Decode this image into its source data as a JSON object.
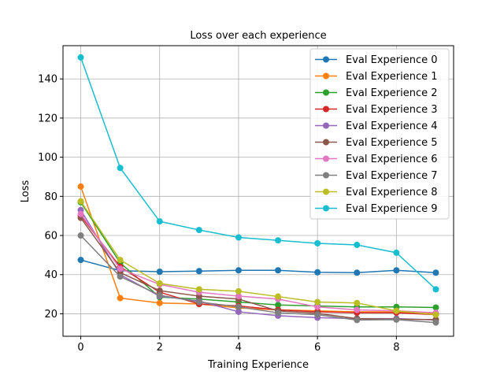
{
  "chart_data": {
    "type": "line",
    "title": "Loss over each experience",
    "xlabel": "Training Experience",
    "ylabel": "Loss",
    "xlim": [
      -0.45,
      9.45
    ],
    "ylim": [
      8.5,
      157
    ],
    "xticks": [
      0,
      2,
      4,
      6,
      8
    ],
    "yticks": [
      20,
      40,
      60,
      80,
      100,
      120,
      140
    ],
    "grid": true,
    "legend_position": "top-right",
    "x": [
      0,
      1,
      2,
      3,
      4,
      5,
      6,
      7,
      8,
      9
    ],
    "series": [
      {
        "name": "Eval Experience 0",
        "color": "#1f77b4",
        "values": [
          47.5,
          42,
          41.5,
          41.8,
          42.2,
          42.2,
          41.2,
          41.0,
          42.2,
          41.0
        ]
      },
      {
        "name": "Eval Experience 1",
        "color": "#ff7f0e",
        "values": [
          85,
          28,
          25.5,
          25.0,
          23.0,
          22.0,
          21.5,
          21.0,
          21.0,
          20.0
        ]
      },
      {
        "name": "Eval Experience 2",
        "color": "#2ca02c",
        "values": [
          77,
          46,
          28.5,
          27.5,
          26.0,
          24.5,
          24.0,
          23.5,
          23.5,
          23.2
        ]
      },
      {
        "name": "Eval Experience 3",
        "color": "#d62728",
        "values": [
          70,
          44,
          31,
          25,
          24,
          22,
          21,
          20.5,
          20.5,
          19.5
        ]
      },
      {
        "name": "Eval Experience 4",
        "color": "#9467bd",
        "values": [
          73,
          40,
          29,
          26.5,
          21,
          19,
          18,
          17.5,
          17.5,
          16.8
        ]
      },
      {
        "name": "Eval Experience 5",
        "color": "#8c564b",
        "values": [
          69,
          41,
          31.8,
          29,
          27.5,
          21.5,
          20.2,
          17.5,
          17.2,
          17.0
        ]
      },
      {
        "name": "Eval Experience 6",
        "color": "#e377c2",
        "values": [
          71,
          43,
          35,
          31,
          29,
          27.5,
          23.5,
          22,
          21.5,
          20.5
        ]
      },
      {
        "name": "Eval Experience 7",
        "color": "#7f7f7f",
        "values": [
          60,
          39,
          29.5,
          26,
          23.5,
          20.5,
          19.5,
          16.8,
          17.0,
          15.5
        ]
      },
      {
        "name": "Eval Experience 8",
        "color": "#bcbd22",
        "values": [
          77.5,
          47.5,
          35.5,
          32.5,
          31.5,
          28.8,
          26.0,
          25.5,
          21.5,
          19.5
        ]
      },
      {
        "name": "Eval Experience 9",
        "color": "#17becf",
        "values": [
          151,
          94.5,
          67.2,
          62.8,
          59.0,
          57.5,
          56.0,
          55.2,
          51.2,
          32.5
        ]
      }
    ]
  }
}
